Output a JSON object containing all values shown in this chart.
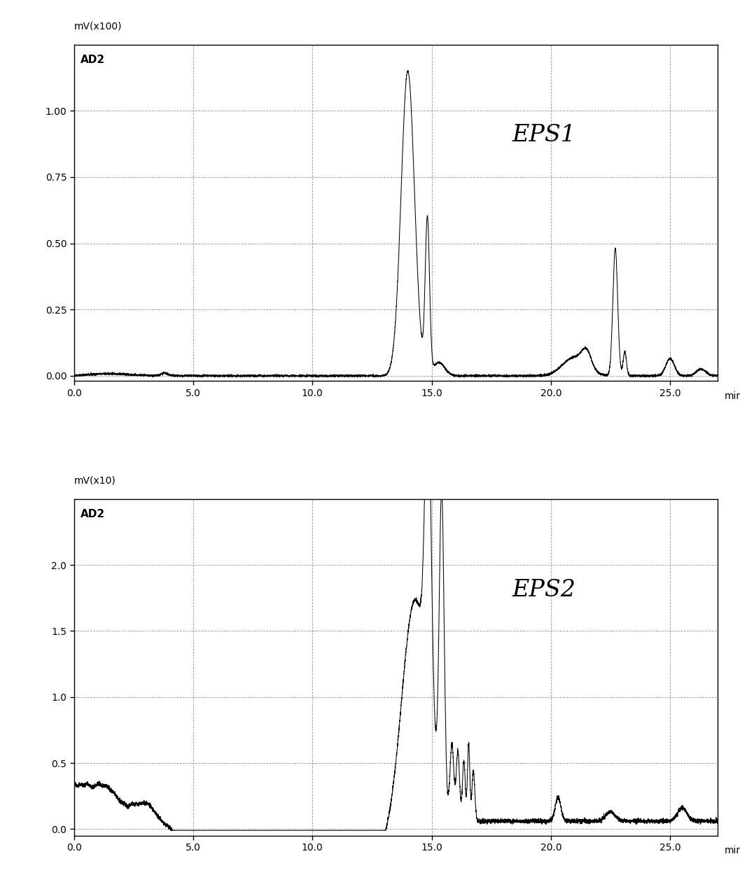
{
  "title1": "EPS1",
  "title2": "EPS2",
  "ylabel1": "mV(x100)",
  "ylabel2": "mV(x10)",
  "ylabel1_sub": "AD2",
  "ylabel2_sub": "AD2",
  "xlabel": "min",
  "xlim": [
    0.0,
    27.0
  ],
  "ylim1": [
    -0.02,
    1.25
  ],
  "ylim2": [
    -0.05,
    2.5
  ],
  "xticks": [
    0.0,
    5.0,
    10.0,
    15.0,
    20.0,
    25.0
  ],
  "yticks1": [
    0.0,
    0.25,
    0.5,
    0.75,
    1.0
  ],
  "yticks2": [
    0.0,
    0.5,
    1.0,
    1.5,
    2.0
  ],
  "grid_color": "#999999",
  "line_color": "#000000",
  "bg_color": "#ffffff"
}
